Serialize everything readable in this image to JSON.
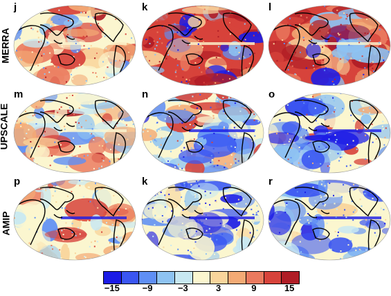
{
  "rows": [
    "MERRA",
    "UPSCALE",
    "AMIP"
  ],
  "panels": [
    {
      "letter": "j",
      "theme": "warm-mix"
    },
    {
      "letter": "k",
      "theme": "warm"
    },
    {
      "letter": "l",
      "theme": "warm"
    },
    {
      "letter": "m",
      "theme": "warm-mix"
    },
    {
      "letter": "n",
      "theme": "cool-mix"
    },
    {
      "letter": "o",
      "theme": "cool-mix"
    },
    {
      "letter": "p",
      "theme": "neutral"
    },
    {
      "letter": "k",
      "theme": "cool"
    },
    {
      "letter": "r",
      "theme": "cool"
    }
  ],
  "colorbar": {
    "colors": [
      "#1c1ce6",
      "#3a56f2",
      "#5f8ff5",
      "#8ec3f2",
      "#c8e8f2",
      "#fbf6cf",
      "#f9d59c",
      "#f3aa75",
      "#ea7a5f",
      "#d7433b",
      "#b01d26"
    ],
    "tick_labels": [
      "−15",
      "−9",
      "−3",
      "3",
      "9",
      "15"
    ],
    "tick_values": [
      -15,
      -9,
      -3,
      3,
      9,
      15
    ]
  }
}
